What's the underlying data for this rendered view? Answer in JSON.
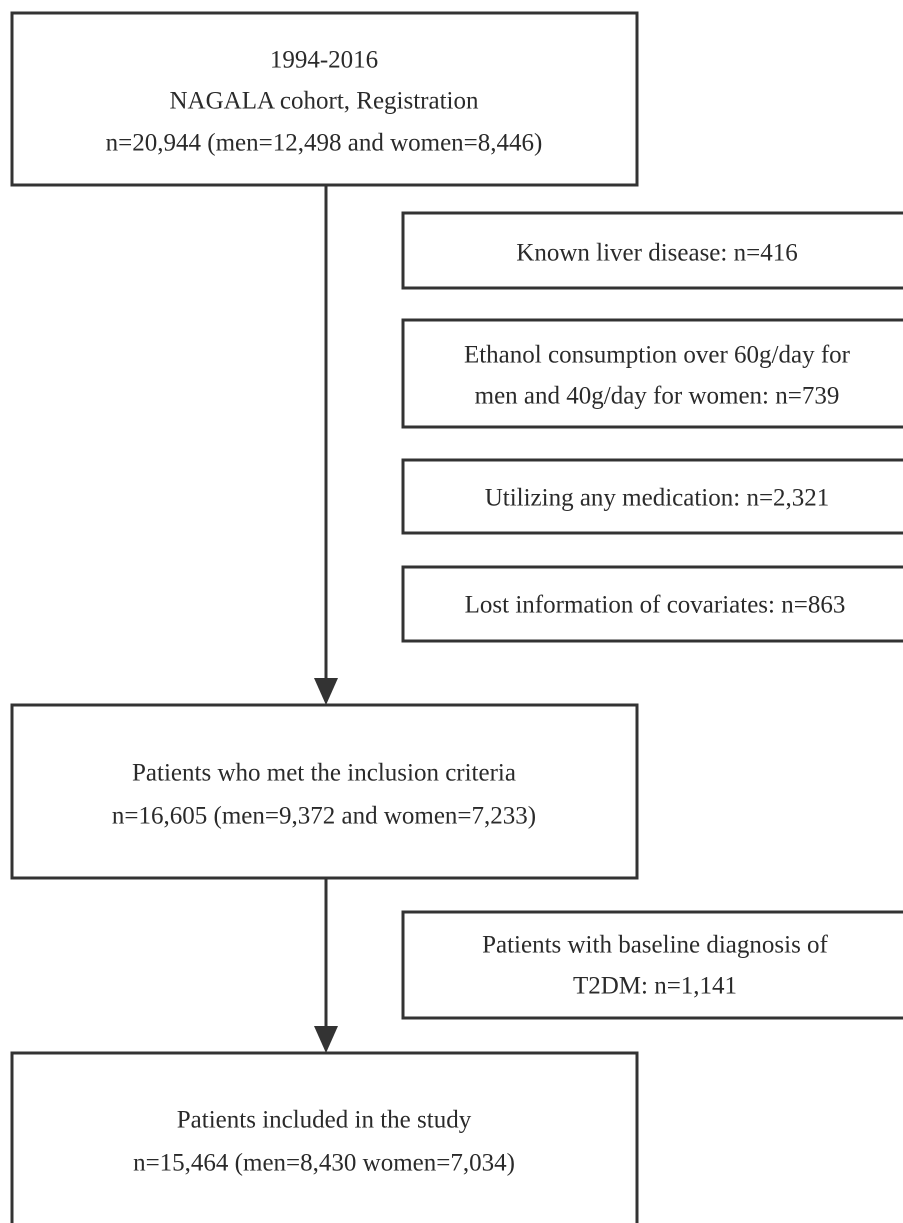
{
  "nodes": [
    {
      "lines": [
        "1994-2016",
        "NAGALA cohort, Registration",
        "n=20,944 (men=12,498 and women=8,446)"
      ]
    },
    {
      "lines": [
        "Known liver disease: n=416"
      ]
    },
    {
      "lines": [
        "Ethanol consumption over 60g/day for",
        "men and 40g/day for women: n=739"
      ]
    },
    {
      "lines": [
        "Utilizing any medication: n=2,321"
      ]
    },
    {
      "lines": [
        "Lost information of covariates: n=863"
      ]
    },
    {
      "lines": [
        "Patients who met the inclusion criteria",
        "n=16,605 (men=9,372 and women=7,233)"
      ]
    },
    {
      "lines": [
        "Patients with baseline diagnosis of",
        "T2DM: n=1,141"
      ]
    },
    {
      "lines": [
        "Patients included in the study",
        "n=15,464 (men=8,430 women=7,034)"
      ]
    }
  ]
}
